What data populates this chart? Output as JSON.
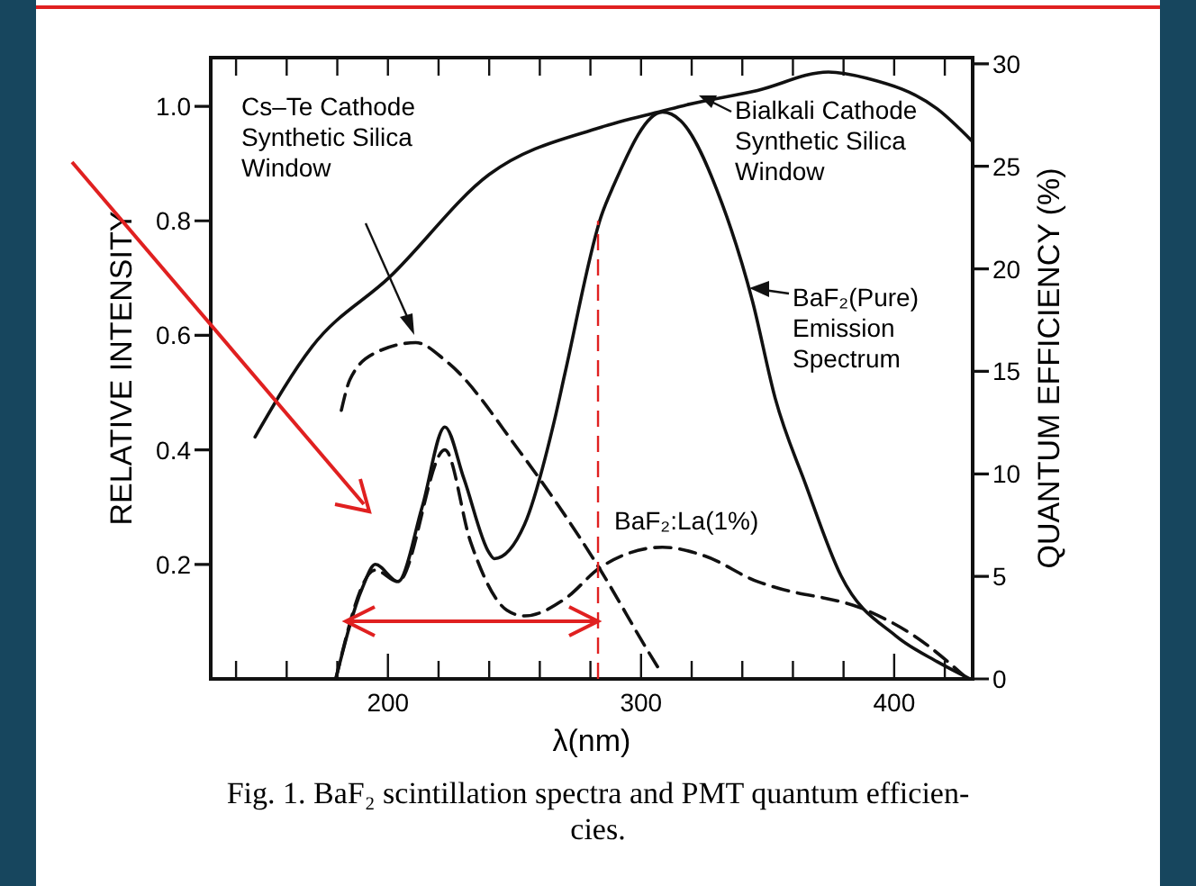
{
  "chart_data": {
    "type": "line",
    "xlabel": "λ(nm)",
    "ylabel": "RELATIVE INTENSITY",
    "y2label": "QUANTUM EFFICIENCY (%)",
    "xlim": [
      130,
      431
    ],
    "xticks": [
      {
        "value": 140,
        "label": null
      },
      {
        "value": 160,
        "label": null
      },
      {
        "value": 180,
        "label": null
      },
      200,
      {
        "value": 220,
        "label": null
      },
      {
        "value": 240,
        "label": null
      },
      {
        "value": 260,
        "label": null
      },
      {
        "value": 280,
        "label": null
      },
      300,
      {
        "value": 320,
        "label": null
      },
      {
        "value": 340,
        "label": null
      },
      {
        "value": 360,
        "label": null
      },
      {
        "value": 380,
        "label": null
      },
      400,
      {
        "value": 420,
        "label": null
      }
    ],
    "ylim": [
      0,
      1.085
    ],
    "yticks": [
      {
        "value": 0.2,
        "label": "0.2"
      },
      {
        "value": 0.4,
        "label": "0.4"
      },
      {
        "value": 0.6,
        "label": "0.6"
      },
      {
        "value": 0.8,
        "label": "0.8"
      },
      {
        "value": 1,
        "label": "1.0"
      }
    ],
    "y2lim": [
      0,
      30.3
    ],
    "y2ticks": [
      0,
      5,
      10,
      15,
      20,
      25,
      30
    ],
    "grid": false,
    "marker": "none",
    "series": [
      {
        "color": "#111111",
        "axis": "y2",
        "line_style": "solid",
        "x": [
          147.5,
          170,
          200.7,
          240,
          284,
          308.5,
          318,
          346,
          374,
          389,
          417,
          431
        ],
        "values": [
          11.8,
          16.2,
          19.6,
          24.6,
          26.9,
          27.7,
          28,
          28.7,
          29.6,
          29.3,
          27.8,
          26.2
        ]
      },
      {
        "color": "#111111",
        "axis": "y2",
        "line_style": "dashed",
        "x": [
          181.6,
          185,
          195,
          211,
          223,
          252,
          284,
          303.5,
          308
        ],
        "values": [
          13.1,
          14.6,
          15.9,
          16.4,
          15.5,
          11.1,
          5.3,
          1.2,
          0.3
        ]
      },
      {
        "color": "#111111",
        "line_style": "solid",
        "x": [
          179.4,
          190,
          195,
          204,
          213.5,
          222.5,
          230,
          240,
          242,
          254,
          265.7,
          270,
          284.4,
          289,
          308.5,
          315.6,
          332,
          344,
          353,
          365,
          379,
          400.7,
          417,
          430
        ],
        "values": [
          0,
          0.16,
          0.2,
          0.17,
          0.3,
          0.44,
          0.35,
          0.22,
          0.21,
          0.27,
          0.45,
          0.535,
          0.81,
          0.86,
          0.99,
          0.975,
          0.83,
          0.66,
          0.49,
          0.34,
          0.18,
          0.075,
          0.03,
          0
        ]
      },
      {
        "color": "#111111",
        "line_style": "dashed",
        "x": [
          179.4,
          195,
          204,
          222.5,
          232.6,
          247,
          254,
          270,
          284,
          308.5,
          325,
          346,
          353,
          389,
          408,
          429
        ],
        "values": [
          0,
          0.19,
          0.17,
          0.4,
          0.24,
          0.12,
          0.11,
          0.14,
          0.195,
          0.23,
          0.215,
          0.17,
          0.16,
          0.12,
          0.075,
          0
        ]
      }
    ],
    "ref_lines": [
      {
        "axis": "x",
        "value": 283,
        "color": "#e02020",
        "line_style": "dashed"
      }
    ],
    "annotations": [
      "Cs–Te Cathode\nSynthetic Silica\nWindow",
      "Bialkali Cathode\nSynthetic Silica\nWindow",
      "BaF₂(Pure)\nEmission\nSpectrum",
      "BaF₂:La(1%)",
      "Fig. 1. BaF₂ scintillation spectra and PMT quantum efficien-\ncies."
    ]
  }
}
